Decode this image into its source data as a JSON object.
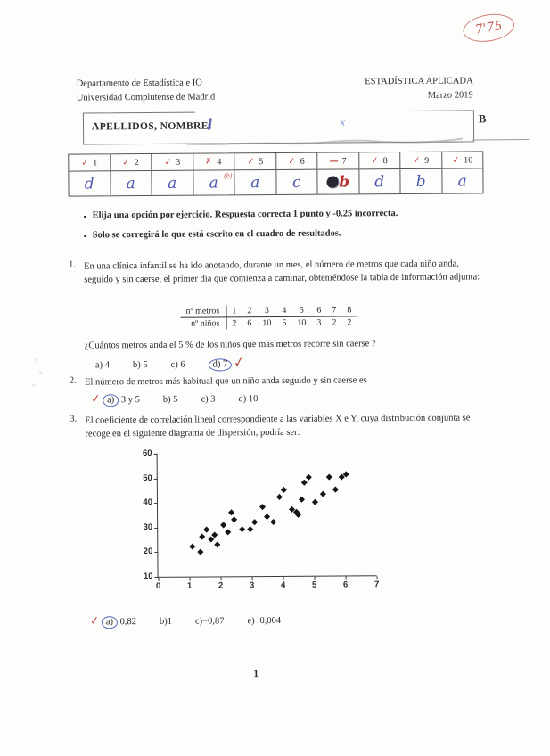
{
  "grade": {
    "value": "7'75"
  },
  "header": {
    "dept_line1": "Departamento de Estadística e IO",
    "dept_line2": "Universidad Complutense de Madrid",
    "course": "ESTADÍSTICA APLICADA",
    "date": "Marzo 2019"
  },
  "name_box": {
    "label": "APELLIDOS, NOMBRE:",
    "exam_version": "B"
  },
  "answer_table": {
    "columns": [
      {
        "num": "1",
        "mark": "✓",
        "answer": "d"
      },
      {
        "num": "2",
        "mark": "✓",
        "answer": "a"
      },
      {
        "num": "3",
        "mark": "✓",
        "answer": "a"
      },
      {
        "num": "4",
        "mark": "✗",
        "answer": "a",
        "correction": "(b)"
      },
      {
        "num": "5",
        "mark": "✓",
        "answer": "a"
      },
      {
        "num": "6",
        "mark": "✓",
        "answer": "c"
      },
      {
        "num": "7",
        "mark": "—",
        "answer": "b",
        "answer_color": "red",
        "scribble": true
      },
      {
        "num": "8",
        "mark": "✓",
        "answer": "d"
      },
      {
        "num": "9",
        "mark": "✓",
        "answer": "b"
      },
      {
        "num": "10",
        "mark": "✓",
        "answer": "a"
      }
    ]
  },
  "instructions": [
    "Elija una opción por ejercicio. Respuesta correcta 1 punto y -0.25 incorrecta.",
    "Solo se corregirá lo que está escrito en el cuadro de resultados."
  ],
  "q1": {
    "number": "1.",
    "text": "En una clínica infantil se ha ido anotando, durante un mes, el número de metros que cada niño anda, seguido y sin caerse, el primer día que comienza a caminar, obteniéndose la tabla de información adjunta:",
    "table": {
      "row1_label": "nº metros",
      "row1_values": [
        "1",
        "2",
        "3",
        "4",
        "5",
        "6",
        "7",
        "8"
      ],
      "row2_label": "nº niños",
      "row2_values": [
        "2",
        "6",
        "10",
        "5",
        "10",
        "3",
        "2",
        "2"
      ]
    },
    "question": "¿Cuántos metros anda el 5 % de los niños que más metros recorre sin caerse ?",
    "options": [
      {
        "label": "a) 4"
      },
      {
        "label": "b) 5"
      },
      {
        "label": "c) 6"
      },
      {
        "circle": "d) 7",
        "check_after": true
      }
    ]
  },
  "q2": {
    "number": "2.",
    "text": "El número de metros más habitual que un niño anda seguido y sin caerse es",
    "options": [
      {
        "check_before": true,
        "circle": "a)",
        "label": "3 y 5"
      },
      {
        "label": "b) 5"
      },
      {
        "label": "c) 3"
      },
      {
        "label": "d) 10"
      }
    ]
  },
  "q3": {
    "number": "3.",
    "text": "El coeficiente de correlación lineal correspondiente a las variables X e Y, cuya distribución conjunta se recoge en el siguiente diagrama de dispersión, podría ser:",
    "options": [
      {
        "check_before": true,
        "circle": "a)",
        "label": "0,82"
      },
      {
        "label": "b)1"
      },
      {
        "label": "c)−0,87"
      },
      {
        "label": "e)−0,004"
      }
    ]
  },
  "chart_data": {
    "type": "scatter",
    "marker": "diamond",
    "title": "",
    "xlabel": "",
    "ylabel": "",
    "xlim": [
      0,
      7
    ],
    "ylim": [
      10,
      60
    ],
    "x_ticks": [
      0,
      1,
      2,
      3,
      4,
      5,
      6,
      7
    ],
    "y_ticks": [
      10,
      20,
      30,
      40,
      50,
      60
    ],
    "points": [
      [
        1.1,
        22
      ],
      [
        1.35,
        20
      ],
      [
        1.4,
        26
      ],
      [
        1.55,
        29
      ],
      [
        1.7,
        25
      ],
      [
        1.8,
        27
      ],
      [
        1.9,
        23
      ],
      [
        2.1,
        31
      ],
      [
        2.25,
        28
      ],
      [
        2.35,
        36
      ],
      [
        2.45,
        33
      ],
      [
        2.7,
        29
      ],
      [
        2.95,
        29
      ],
      [
        3.1,
        32
      ],
      [
        3.35,
        38
      ],
      [
        3.5,
        34
      ],
      [
        3.7,
        32
      ],
      [
        3.9,
        42
      ],
      [
        4.05,
        45
      ],
      [
        4.3,
        37
      ],
      [
        4.45,
        36
      ],
      [
        4.5,
        35
      ],
      [
        4.6,
        41
      ],
      [
        4.7,
        48
      ],
      [
        4.85,
        50
      ],
      [
        5.05,
        40
      ],
      [
        5.3,
        43
      ],
      [
        5.5,
        50
      ],
      [
        5.7,
        45
      ],
      [
        5.9,
        50
      ],
      [
        6.05,
        51
      ]
    ]
  },
  "page_number": "1"
}
